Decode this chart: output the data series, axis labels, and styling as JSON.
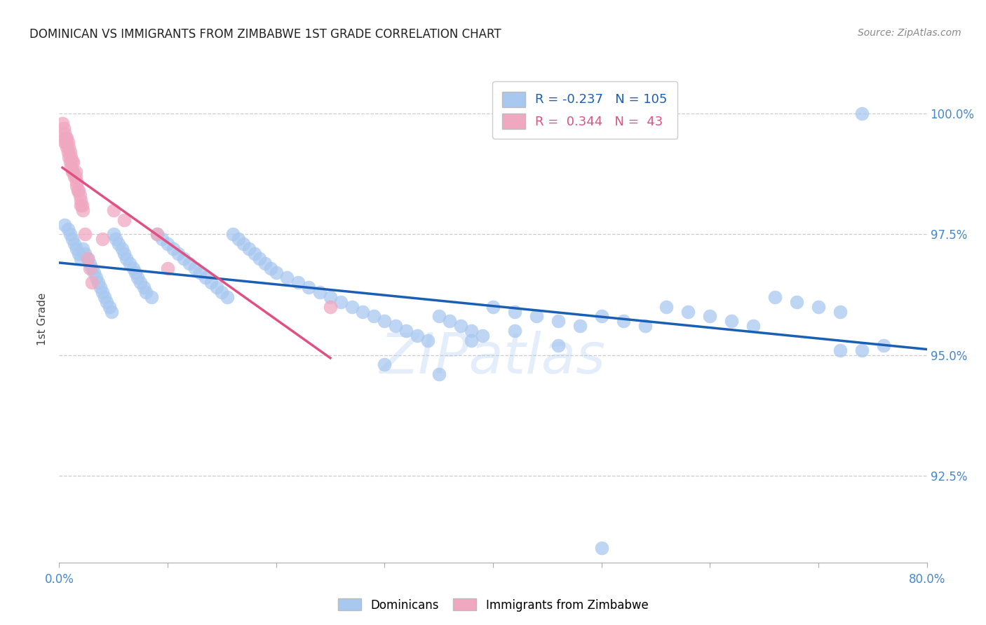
{
  "title": "DOMINICAN VS IMMIGRANTS FROM ZIMBABWE 1ST GRADE CORRELATION CHART",
  "source": "Source: ZipAtlas.com",
  "ylabel": "1st Grade",
  "ytick_labels": [
    "92.5%",
    "95.0%",
    "97.5%",
    "100.0%"
  ],
  "ytick_values": [
    0.925,
    0.95,
    0.975,
    1.0
  ],
  "xmin": 0.0,
  "xmax": 0.8,
  "ymin": 0.907,
  "ymax": 1.008,
  "blue_R": -0.237,
  "blue_N": 105,
  "pink_R": 0.344,
  "pink_N": 43,
  "blue_color": "#a8c8f0",
  "pink_color": "#f0a8c0",
  "blue_line_color": "#1a5fb4",
  "pink_line_color": "#e05080",
  "title_color": "#222222",
  "axis_label_color": "#4488cc",
  "watermark": "ZIPatlas",
  "blue_scatter_x": [
    0.005,
    0.008,
    0.01,
    0.012,
    0.014,
    0.016,
    0.018,
    0.02,
    0.022,
    0.024,
    0.026,
    0.028,
    0.03,
    0.032,
    0.034,
    0.036,
    0.038,
    0.04,
    0.042,
    0.044,
    0.046,
    0.048,
    0.05,
    0.052,
    0.055,
    0.058,
    0.06,
    0.062,
    0.065,
    0.068,
    0.07,
    0.072,
    0.075,
    0.078,
    0.08,
    0.085,
    0.09,
    0.095,
    0.1,
    0.105,
    0.11,
    0.115,
    0.12,
    0.125,
    0.13,
    0.135,
    0.14,
    0.145,
    0.15,
    0.155,
    0.16,
    0.165,
    0.17,
    0.175,
    0.18,
    0.185,
    0.19,
    0.195,
    0.2,
    0.21,
    0.22,
    0.23,
    0.24,
    0.25,
    0.26,
    0.27,
    0.28,
    0.29,
    0.3,
    0.31,
    0.32,
    0.33,
    0.34,
    0.35,
    0.36,
    0.37,
    0.38,
    0.39,
    0.4,
    0.42,
    0.44,
    0.46,
    0.48,
    0.5,
    0.52,
    0.54,
    0.56,
    0.58,
    0.6,
    0.62,
    0.64,
    0.66,
    0.68,
    0.7,
    0.72,
    0.74,
    0.76,
    0.5,
    0.46,
    0.72,
    0.38,
    0.42,
    0.3,
    0.35,
    0.74
  ],
  "blue_scatter_y": [
    0.977,
    0.976,
    0.975,
    0.974,
    0.973,
    0.972,
    0.971,
    0.97,
    0.972,
    0.971,
    0.97,
    0.969,
    0.968,
    0.967,
    0.966,
    0.965,
    0.964,
    0.963,
    0.962,
    0.961,
    0.96,
    0.959,
    0.975,
    0.974,
    0.973,
    0.972,
    0.971,
    0.97,
    0.969,
    0.968,
    0.967,
    0.966,
    0.965,
    0.964,
    0.963,
    0.962,
    0.975,
    0.974,
    0.973,
    0.972,
    0.971,
    0.97,
    0.969,
    0.968,
    0.967,
    0.966,
    0.965,
    0.964,
    0.963,
    0.962,
    0.975,
    0.974,
    0.973,
    0.972,
    0.971,
    0.97,
    0.969,
    0.968,
    0.967,
    0.966,
    0.965,
    0.964,
    0.963,
    0.962,
    0.961,
    0.96,
    0.959,
    0.958,
    0.957,
    0.956,
    0.955,
    0.954,
    0.953,
    0.958,
    0.957,
    0.956,
    0.955,
    0.954,
    0.96,
    0.959,
    0.958,
    0.957,
    0.956,
    0.958,
    0.957,
    0.956,
    0.96,
    0.959,
    0.958,
    0.957,
    0.956,
    0.962,
    0.961,
    0.96,
    0.959,
    0.951,
    0.952,
    0.91,
    0.952,
    0.951,
    0.953,
    0.955,
    0.948,
    0.946,
    1.0
  ],
  "pink_scatter_x": [
    0.003,
    0.004,
    0.005,
    0.005,
    0.005,
    0.006,
    0.006,
    0.007,
    0.007,
    0.008,
    0.008,
    0.009,
    0.009,
    0.01,
    0.01,
    0.011,
    0.011,
    0.012,
    0.012,
    0.013,
    0.013,
    0.014,
    0.015,
    0.015,
    0.016,
    0.016,
    0.017,
    0.018,
    0.019,
    0.02,
    0.02,
    0.021,
    0.022,
    0.024,
    0.026,
    0.028,
    0.03,
    0.04,
    0.05,
    0.06,
    0.09,
    0.1,
    0.25
  ],
  "pink_scatter_y": [
    0.998,
    0.997,
    0.996,
    0.995,
    0.994,
    0.995,
    0.994,
    0.995,
    0.993,
    0.994,
    0.992,
    0.993,
    0.991,
    0.992,
    0.99,
    0.991,
    0.989,
    0.99,
    0.988,
    0.99,
    0.988,
    0.987,
    0.988,
    0.987,
    0.986,
    0.985,
    0.984,
    0.984,
    0.983,
    0.982,
    0.981,
    0.981,
    0.98,
    0.975,
    0.97,
    0.968,
    0.965,
    0.974,
    0.98,
    0.978,
    0.975,
    0.968,
    0.96
  ]
}
